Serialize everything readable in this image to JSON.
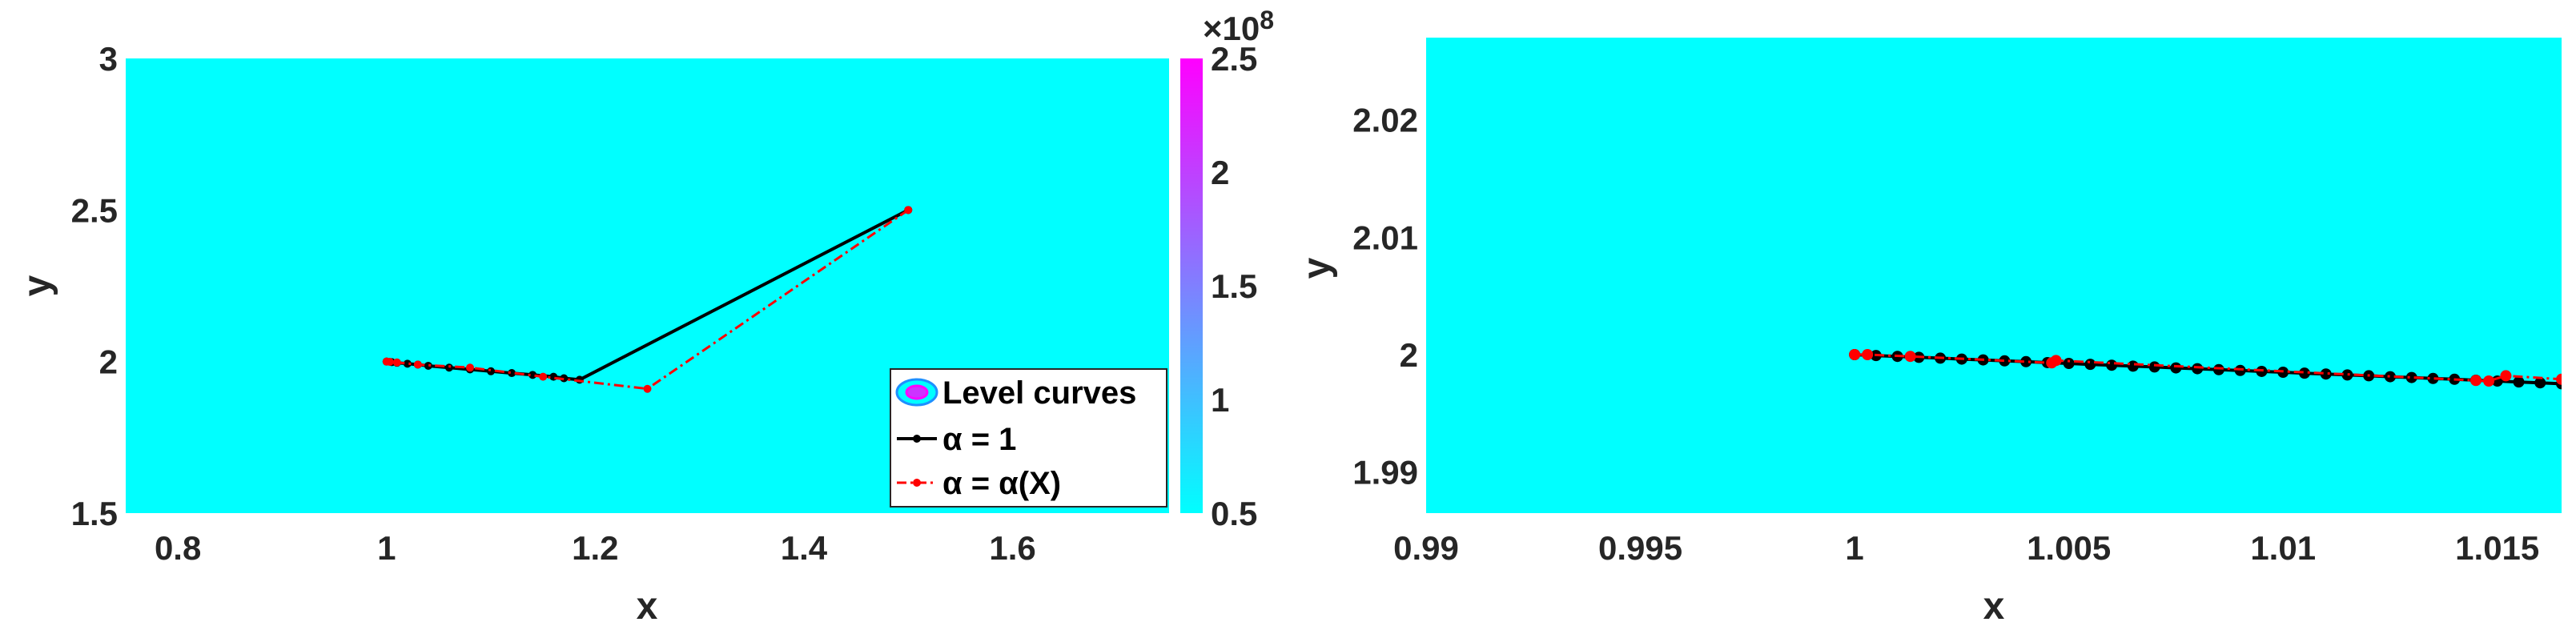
{
  "chart_data": [
    {
      "type": "line",
      "title": "",
      "xlabel": "x",
      "ylabel": "y",
      "xlim": [
        0.75,
        1.75
      ],
      "ylim": [
        1.5,
        3.0
      ],
      "xticks": [
        "0.8",
        "1",
        "1.2",
        "1.4",
        "1.6"
      ],
      "yticks": [
        "1.5",
        "2",
        "2.5",
        "3"
      ],
      "background_color": "#00ffff",
      "colorbar": {
        "range": [
          0.5,
          2.5
        ],
        "ticks": [
          "0.5",
          "1",
          "1.5",
          "2",
          "2.5"
        ],
        "exponent_label": "×10",
        "exponent_power": "8",
        "colors": [
          "#00ffff",
          "#ff00ff"
        ]
      },
      "legend": {
        "position": "bottom-right",
        "entries": [
          {
            "label": "Level curves",
            "type": "contour"
          },
          {
            "label": "α = 1",
            "color": "#000000",
            "style": "solid"
          },
          {
            "label": "α = α(X)",
            "color": "#ff0000",
            "style": "dashdot"
          }
        ]
      },
      "series": [
        {
          "name": "α = 1",
          "color": "#000000",
          "x": [
            1.5,
            1.185,
            1.17,
            1.16,
            1.14,
            1.12,
            1.1,
            1.08,
            1.06,
            1.04,
            1.03,
            1.02,
            1.01,
            1.005,
            1.0
          ],
          "y": [
            2.5,
            1.94,
            1.945,
            1.95,
            1.956,
            1.962,
            1.968,
            1.974,
            1.98,
            1.986,
            1.99,
            1.993,
            1.996,
            1.998,
            2.0
          ]
        },
        {
          "name": "α = α(X)",
          "color": "#ff0000",
          "x": [
            1.5,
            1.25,
            1.15,
            1.08,
            1.03,
            1.01,
            1.003,
            1.0
          ],
          "y": [
            2.5,
            1.91,
            1.95,
            1.98,
            1.99,
            1.997,
            1.999,
            2.0
          ]
        }
      ]
    },
    {
      "type": "line",
      "title": "",
      "xlabel": "x",
      "ylabel": "y",
      "xlim": [
        0.99,
        1.0165
      ],
      "ylim": [
        1.9865,
        2.027
      ],
      "xticks": [
        "0.99",
        "0.995",
        "1",
        "1.005",
        "1.01",
        "1.015"
      ],
      "yticks": [
        "1.99",
        "2",
        "2.01",
        "2.02"
      ],
      "background_color": "#00ffff",
      "series": [
        {
          "name": "α = 1",
          "color": "#000000",
          "x": [
            1.0,
            1.0005,
            1.001,
            1.0015,
            1.002,
            1.0025,
            1.003,
            1.0035,
            1.004,
            1.0045,
            1.005,
            1.0055,
            1.006,
            1.0065,
            1.007,
            1.0075,
            1.008,
            1.0085,
            1.009,
            1.0095,
            1.01,
            1.0105,
            1.011,
            1.0115,
            1.012,
            1.0125,
            1.013,
            1.0135,
            1.014,
            1.0145,
            1.015,
            1.0155,
            1.016,
            1.0165
          ],
          "y": [
            2.0,
            1.99992,
            1.99985,
            1.99977,
            1.9997,
            1.99962,
            1.99955,
            1.99947,
            1.9994,
            1.99932,
            1.99925,
            1.99917,
            1.9991,
            1.99902,
            1.99895,
            1.99887,
            1.9988,
            1.99872,
            1.99865,
            1.99857,
            1.9985,
            1.99842,
            1.99835,
            1.99827,
            1.9982,
            1.99812,
            1.99805,
            1.99797,
            1.9979,
            1.99782,
            1.99775,
            1.99767,
            1.9976,
            1.99752
          ]
        },
        {
          "name": "α = α(X)",
          "color": "#ff0000",
          "x": [
            1.0,
            1.0003,
            1.0013,
            1.0046,
            1.0047,
            1.0145,
            1.0148,
            1.0152,
            1.0165
          ],
          "y": [
            2.0,
            2.0,
            1.99985,
            1.9993,
            1.9995,
            1.9978,
            1.99775,
            1.9982,
            1.9979
          ]
        }
      ]
    }
  ]
}
